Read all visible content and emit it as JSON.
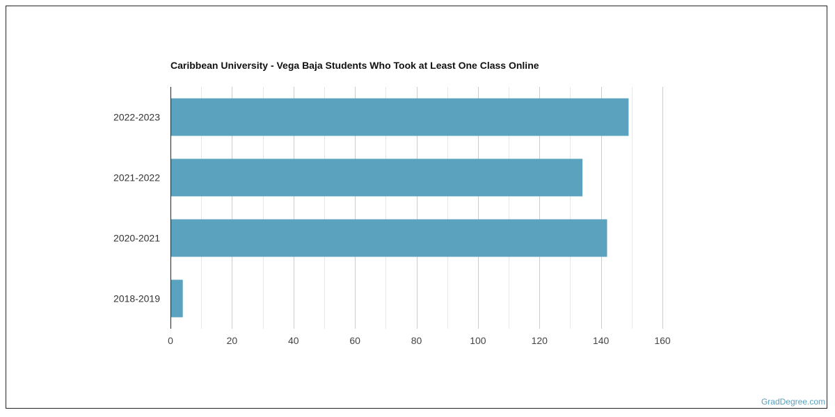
{
  "brand": {
    "watermark": "GradDegree.com"
  },
  "colors": {
    "bar": "#5ba2be",
    "grid_major": "#cccccc",
    "grid_minor": "#e6e6e6",
    "axis": "#222222"
  },
  "chart_data": {
    "type": "bar",
    "orientation": "horizontal",
    "title": "Caribbean University - Vega Baja Students Who Took at Least One Class Online",
    "xlabel": "",
    "ylabel": "",
    "categories": [
      "2022-2023",
      "2021-2022",
      "2020-2021",
      "2018-2019"
    ],
    "values": [
      149,
      134,
      142,
      4
    ],
    "xlim": [
      0,
      160
    ],
    "xticks": [
      0,
      20,
      40,
      60,
      80,
      100,
      120,
      140,
      160
    ],
    "grid": true,
    "legend": "none"
  }
}
